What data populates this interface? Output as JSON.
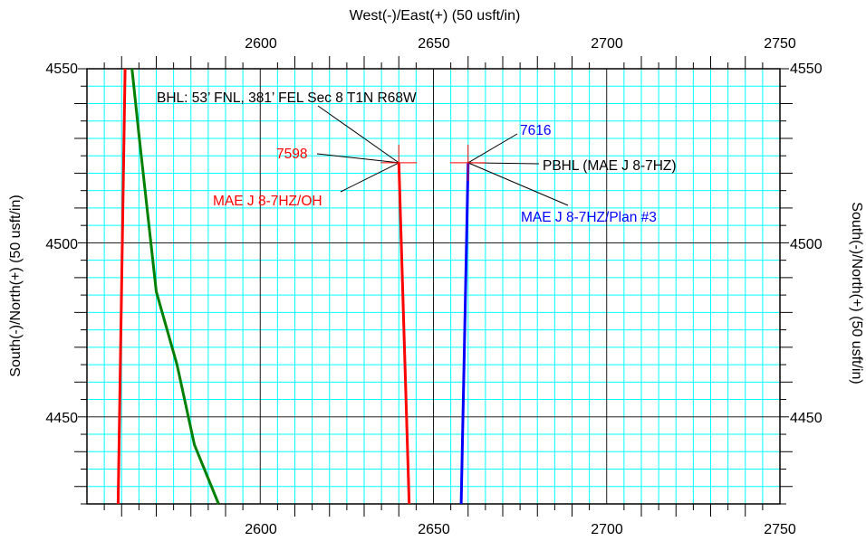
{
  "chart_data": {
    "type": "line",
    "xlabel": "West(-)/East(+)  (50 usft/in)",
    "ylabel": "South(-)/North(+)  (50 usft/in)",
    "xlim": [
      2550,
      2750
    ],
    "ylim": [
      4425,
      4550
    ],
    "x_ticks": [
      "2600",
      "2650",
      "2700",
      "2750"
    ],
    "y_ticks": [
      "4550",
      "4500",
      "4450"
    ],
    "grid": true,
    "colors": {
      "minor_grid": "#00ffff",
      "major_grid": "#000000",
      "red": "#ff0000",
      "blue": "#0000ff",
      "green": "#008000"
    },
    "series": [
      {
        "color": "#ff0000",
        "x": [
          2561,
          2559
        ],
        "y": [
          4550,
          4425
        ]
      },
      {
        "color": "#008000",
        "x": [
          2563,
          2565,
          2570,
          2576,
          2581,
          2588
        ],
        "y": [
          4550,
          4531,
          4486,
          4465,
          4442,
          4425
        ]
      },
      {
        "color": "#ff0000",
        "x": [
          2640,
          2643
        ],
        "y": [
          4523,
          4425
        ]
      },
      {
        "color": "#0000ff",
        "x": [
          2660,
          2658
        ],
        "y": [
          4523,
          4425
        ]
      }
    ],
    "targets": [
      {
        "name": "red-target-cross",
        "x": 2640,
        "y": 4523,
        "color": "#ff0000"
      },
      {
        "name": "blue-target-cross",
        "x": 2660,
        "y": 4523,
        "color": "#ff0000"
      }
    ],
    "annotations": [
      {
        "name": "bhl-label",
        "text": "BHL: 53’ FNL, 381’ FEL Sec 8 T1N R68W",
        "color": "#000000"
      },
      {
        "name": "red-depth-label",
        "text": "7598",
        "color": "#ff0000"
      },
      {
        "name": "red-well-label",
        "text": "MAE J 8-7HZ/OH",
        "color": "#ff0000"
      },
      {
        "name": "blue-depth-label",
        "text": "7616",
        "color": "#0000ff"
      },
      {
        "name": "pbhl-label",
        "text": "PBHL (MAE J 8-7HZ)",
        "color": "#000000"
      },
      {
        "name": "blue-well-label",
        "text": "MAE J 8-7HZ/Plan #3",
        "color": "#0000ff"
      }
    ]
  }
}
